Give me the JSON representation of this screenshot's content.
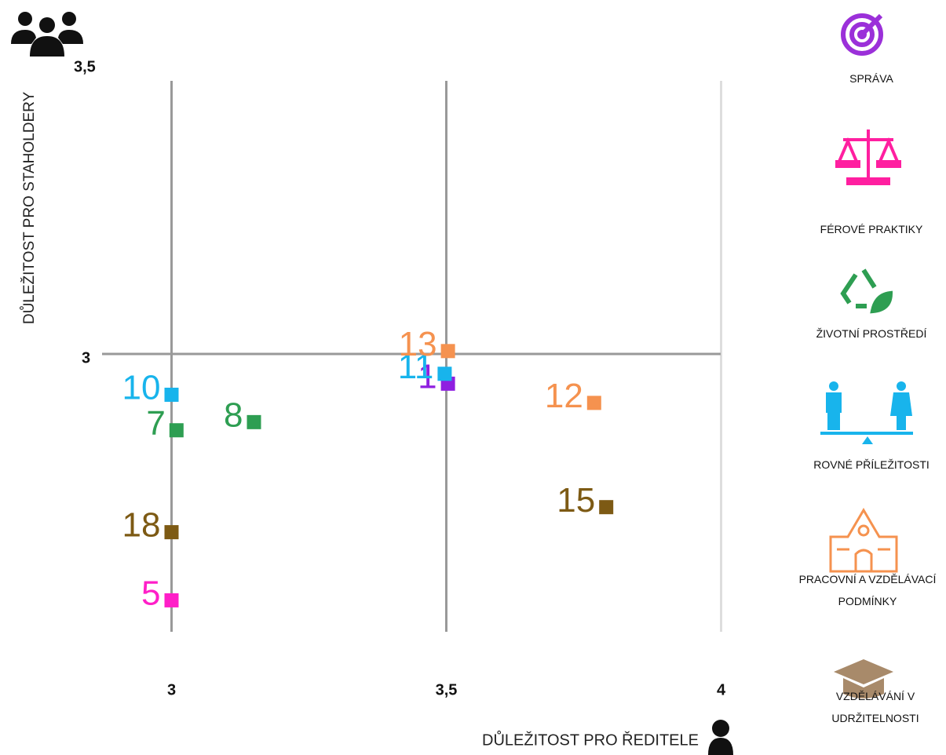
{
  "chart_data": {
    "type": "scatter",
    "xlabel": "DŮLEŽITOST PRO ŘEDITELE",
    "ylabel": "DŮLEŽITOST PRO STAHOLDERY",
    "xlim": [
      2.885,
      4.005
    ],
    "ylim": [
      2.523,
      3.5
    ],
    "xticks": [
      3,
      {
        "value": 3.5,
        "label": "3,5"
      },
      4
    ],
    "yticks": [
      3,
      {
        "value": 3.5,
        "label": "3,5"
      }
    ],
    "grid": true,
    "series": [
      {
        "name": "SPRÁVA",
        "color": "#8f1fe0",
        "point_labels": [
          1
        ],
        "x": [
          3.503
        ],
        "y": [
          2.949
        ]
      },
      {
        "name": "FÉROVÉ PRAKTIKY",
        "color": "#ff1fc8",
        "point_labels": [
          5
        ],
        "x": [
          3.0
        ],
        "y": [
          2.577
        ]
      },
      {
        "name": "ŽIVOTNÍ PROSTŘEDÍ",
        "color": "#2e9e52",
        "point_labels": [
          7,
          8
        ],
        "x": [
          3.009,
          3.15
        ],
        "y": [
          2.869,
          2.883
        ]
      },
      {
        "name": "ROVNÉ PŘÍLEŽITOSTI",
        "color": "#18b4ec",
        "point_labels": [
          10,
          11
        ],
        "x": [
          3.0,
          3.497
        ],
        "y": [
          2.93,
          2.966
        ]
      },
      {
        "name": "PRACOVNÍ A VZDĚLÁVACÍ PODMÍNKY",
        "color": "#f5924f",
        "point_labels": [
          12,
          13
        ],
        "x": [
          3.769,
          3.503
        ],
        "y": [
          2.916,
          3.005
        ]
      },
      {
        "name": "VZDĚLÁVÁNÍ V UDRŽITELNOSTI",
        "color": "#7d5a14",
        "point_labels": [
          15,
          18
        ],
        "x": [
          3.791,
          3.0
        ],
        "y": [
          2.737,
          2.694
        ]
      }
    ]
  }
}
